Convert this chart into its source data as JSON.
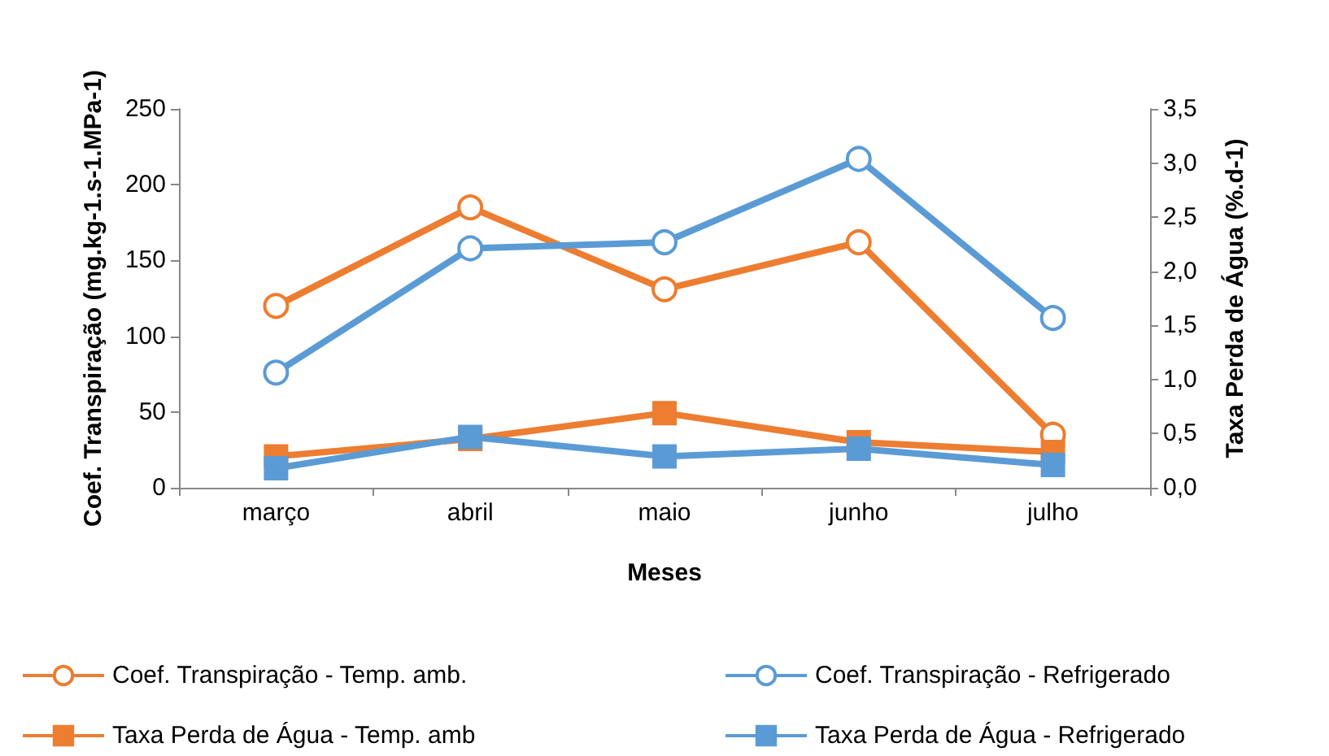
{
  "chart_data": {
    "type": "line",
    "xlabel": "Meses",
    "ylabel": "Coef. Transpiração (mg.kg-1.s-1.MPa-1)",
    "y2label": "Taxa Perda de Água (%.d-1)",
    "categories": [
      "março",
      "abril",
      "maio",
      "junho",
      "julho"
    ],
    "series": [
      {
        "name": "Coef. Transpiração - Temp. amb.",
        "color": "#ed7d31",
        "marker": "circle",
        "values": [
          120,
          185,
          131,
          162,
          35
        ]
      },
      {
        "name": "Coef. Transpiração - Refrigerado",
        "color": "#5b9bd5",
        "marker": "circle",
        "values": [
          76,
          158,
          162,
          217,
          112
        ]
      },
      {
        "name": "Taxa Perda de Água - Temp. amb",
        "color": "#ed7d31",
        "marker": "square",
        "axis": "y2",
        "values": [
          0.29,
          0.45,
          0.69,
          0.42,
          0.33
        ]
      },
      {
        "name": "Taxa Perda de Água - Refrigerado",
        "color": "#5b9bd5",
        "marker": "square",
        "axis": "y2",
        "values": [
          0.18,
          0.47,
          0.29,
          0.36,
          0.21
        ]
      }
    ],
    "ylim": [
      0,
      250
    ],
    "yticks": [
      0,
      50,
      100,
      150,
      200,
      250
    ],
    "y2lim": [
      0,
      3.5
    ],
    "y2ticks": [
      {
        "value": 0,
        "label": "0,0"
      },
      {
        "value": 0.5,
        "label": "0,5"
      },
      {
        "value": 1,
        "label": "1,0"
      },
      {
        "value": 1.5,
        "label": "1,5"
      },
      {
        "value": 2,
        "label": "2,0"
      },
      {
        "value": 2.5,
        "label": "2,5"
      },
      {
        "value": 3,
        "label": "3,0"
      },
      {
        "value": 3.5,
        "label": "3,5"
      }
    ],
    "grid": false,
    "legend": "bottom",
    "line_style": "solid"
  }
}
